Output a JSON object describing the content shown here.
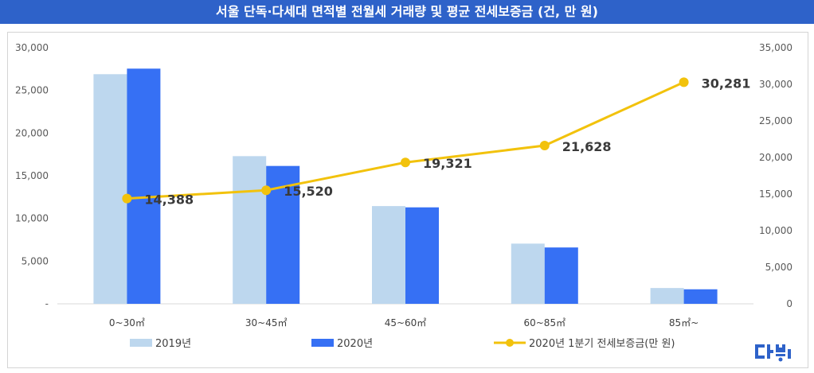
{
  "header": {
    "title": "서울 단독·다세대 면적별 전월세 거래량 및 평균 전세보증금 (건, 만 원)"
  },
  "logo": {
    "text": "다방"
  },
  "colors": {
    "bar2019": "#bdd7ee",
    "bar2020": "#3670f4",
    "line": "#f2c20c",
    "title_bg": "#2e62c9"
  },
  "chart_data": {
    "type": "bar",
    "title": "서울 단독·다세대 면적별 전월세 거래량 및 평균 전세보증금 (건, 만 원)",
    "categories": [
      "0~30㎡",
      "30~45㎡",
      "45~60㎡",
      "60~85㎡",
      "85㎡~"
    ],
    "series": [
      {
        "name": "2019년",
        "type": "bar",
        "axis": "left",
        "values": [
          26900,
          17300,
          11450,
          7050,
          1850
        ]
      },
      {
        "name": "2020년",
        "type": "bar",
        "axis": "left",
        "values": [
          27550,
          16150,
          11300,
          6600,
          1700
        ]
      },
      {
        "name": "2020년 1분기 전세보증금(만 원)",
        "type": "line",
        "axis": "right",
        "values": [
          14388,
          15520,
          19321,
          21628,
          30281
        ]
      }
    ],
    "line_labels": [
      "14,388",
      "15,520",
      "19,321",
      "21,628",
      "30,281"
    ],
    "left_axis": {
      "ylim": [
        0,
        30000
      ],
      "ticks": [
        "-",
        "5,000",
        "10,000",
        "15,000",
        "20,000",
        "25,000",
        "30,000"
      ]
    },
    "right_axis": {
      "ylim": [
        0,
        35000
      ],
      "ticks": [
        "0",
        "5,000",
        "10,000",
        "15,000",
        "20,000",
        "25,000",
        "30,000",
        "35,000"
      ]
    },
    "legend": [
      "2019년",
      "2020년",
      "2020년 1분기 전세보증금(만 원)"
    ],
    "legend_position": "bottom"
  }
}
